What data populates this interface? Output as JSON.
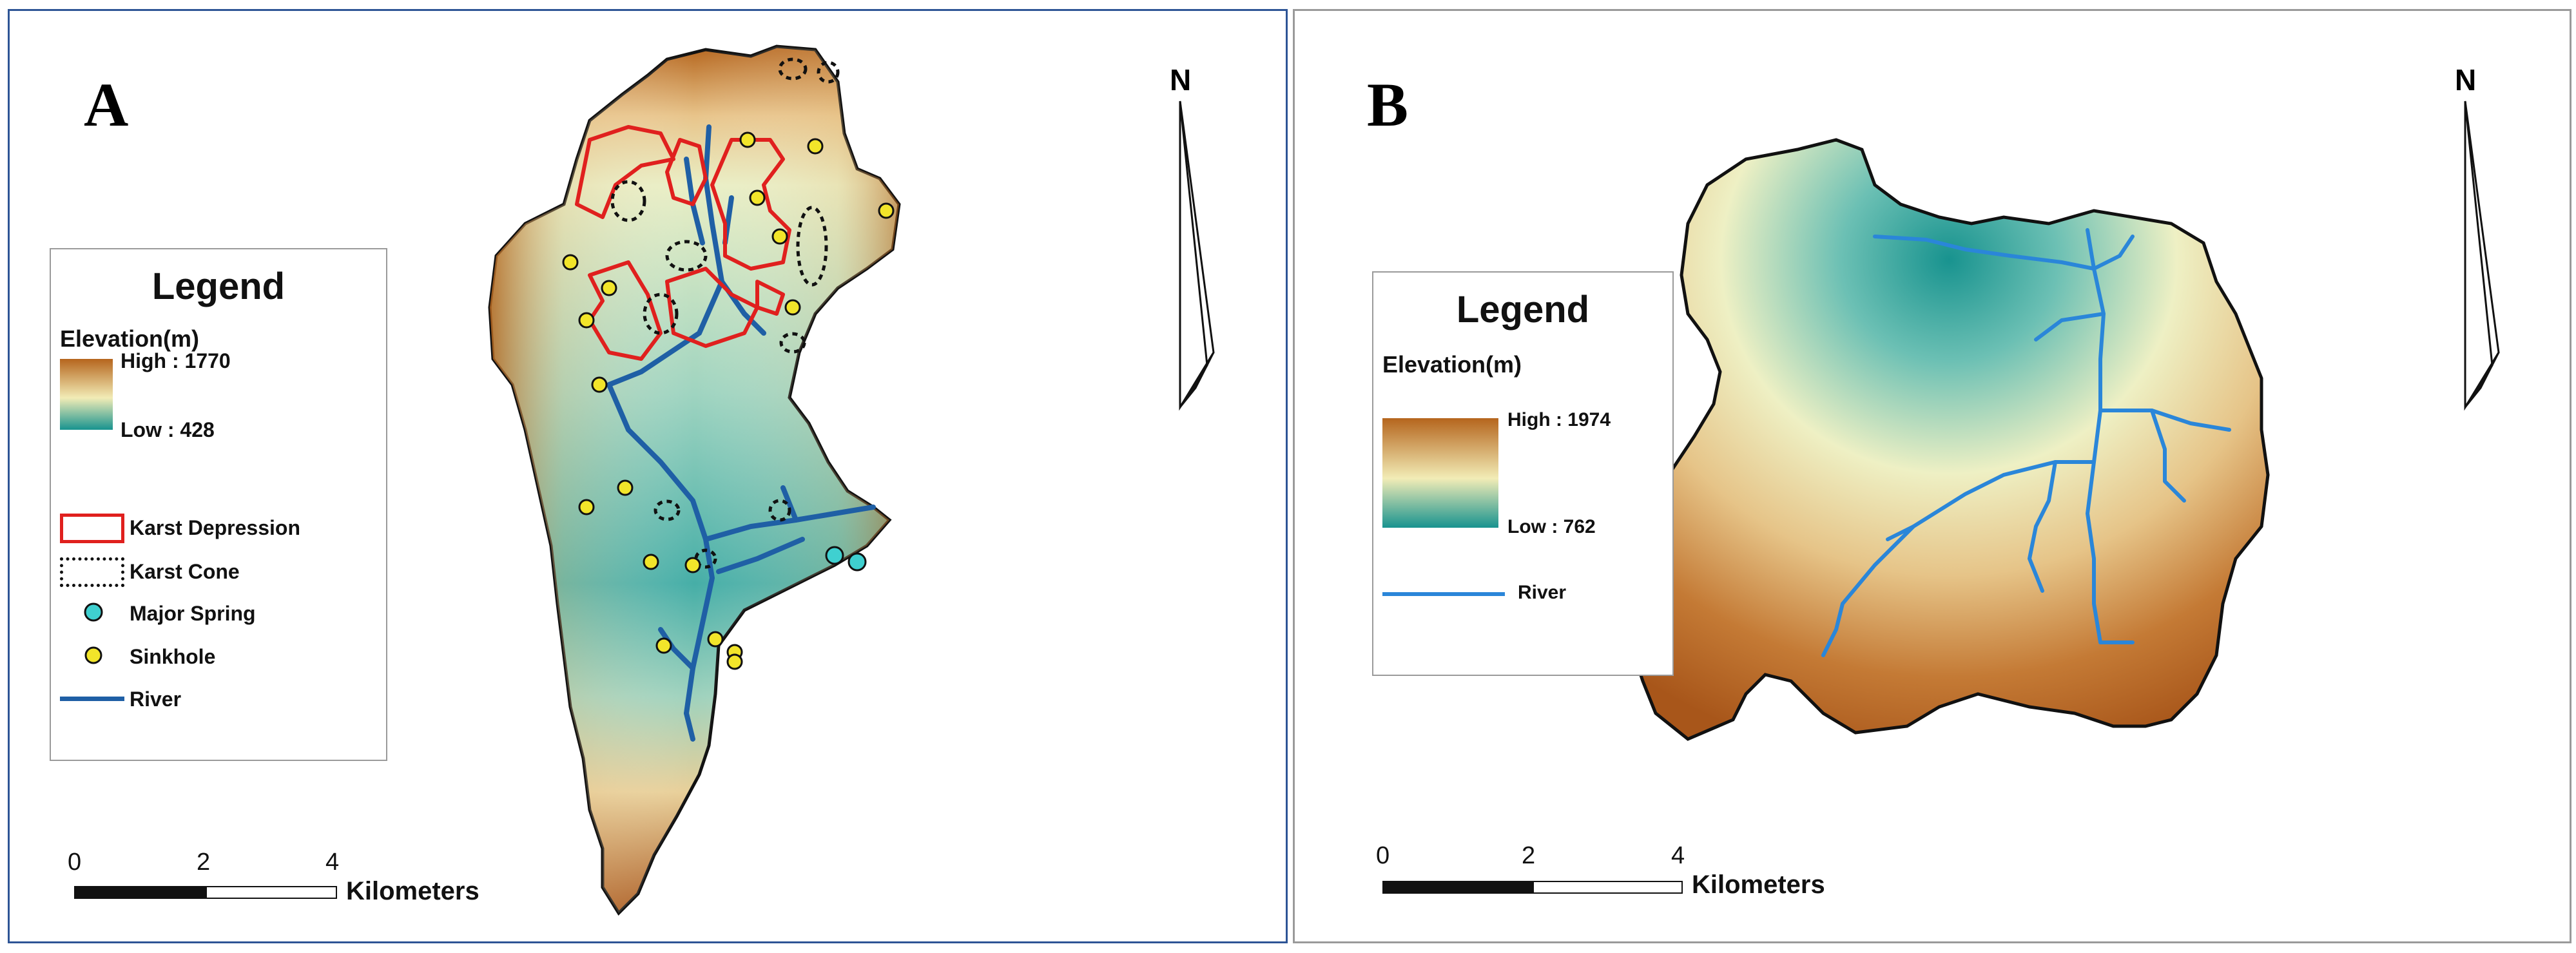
{
  "panel_a": {
    "label": "A",
    "legend": {
      "title": "Legend",
      "elevation_title": "Elevation(m)",
      "high_label": "High : 1770",
      "low_label": "Low : 428",
      "items": [
        {
          "label": "Karst Depression",
          "symbol": "red-outline-box"
        },
        {
          "label": "Karst Cone",
          "symbol": "dotted-outline-box"
        },
        {
          "label": "Major Spring",
          "symbol": "cyan-circle"
        },
        {
          "label": "Sinkhole",
          "symbol": "yellow-circle"
        },
        {
          "label": "River",
          "symbol": "blue-line"
        }
      ]
    },
    "north_label": "N",
    "scale": {
      "ticks": [
        "0",
        "2",
        "4"
      ],
      "unit": "Kilometers"
    }
  },
  "panel_b": {
    "label": "B",
    "legend": {
      "title": "Legend",
      "elevation_title": "Elevation(m)",
      "high_label": "High : 1974",
      "low_label": "Low : 762",
      "items": [
        {
          "label": "River",
          "symbol": "light-blue-line"
        }
      ]
    },
    "north_label": "N",
    "scale": {
      "ticks": [
        "0",
        "2",
        "4"
      ],
      "unit": "Kilometers"
    }
  },
  "colors": {
    "elev_high": "#b5651d",
    "elev_mid": "#f2ecb6",
    "elev_low": "#18938f",
    "river_a": "#1f5fa5",
    "river_b": "#2a86d9",
    "karst_depression": "#e0201e",
    "spring": "#3fd0d0",
    "sinkhole": "#f2e52a",
    "frame_a": "#2e5596",
    "frame_b": "#9a9a9a"
  }
}
